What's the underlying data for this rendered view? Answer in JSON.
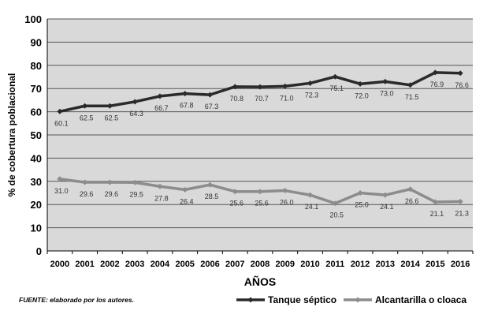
{
  "chart_data": {
    "type": "line",
    "xlabel": "AÑOS",
    "ylabel": "% de cobertura poblacional",
    "ylim": [
      0,
      100
    ],
    "yticks": [
      0,
      10,
      20,
      30,
      40,
      50,
      60,
      70,
      80,
      90,
      100
    ],
    "grid": true,
    "legend_position": "bottom-right",
    "categories": [
      "2000",
      "2001",
      "2002",
      "2003",
      "2004",
      "2005",
      "2006",
      "2007",
      "2008",
      "2009",
      "2010",
      "2011",
      "2012",
      "2013",
      "2014",
      "2015",
      "2016"
    ],
    "series": [
      {
        "name": "Tanque séptico",
        "color": "#2a2a2a",
        "marker": "diamond",
        "values": [
          60.1,
          62.5,
          62.5,
          64.3,
          66.7,
          67.8,
          67.3,
          70.8,
          70.7,
          71.0,
          72.3,
          75.1,
          72.0,
          73.0,
          71.5,
          76.9,
          76.6
        ],
        "labels": [
          "60.1",
          "62.5",
          "62.5",
          "64.3",
          "66.7",
          "67.8",
          "67.3",
          "70.8",
          "70.7",
          "71.0",
          "72.3",
          "75.1",
          "72.0",
          "73.0",
          "71.5",
          "76.9",
          "76.6"
        ]
      },
      {
        "name": "Alcantarilla o cloaca",
        "color": "#8c8c8c",
        "marker": "diamond",
        "values": [
          31.0,
          29.6,
          29.6,
          29.5,
          27.8,
          26.4,
          28.5,
          25.6,
          25.6,
          26.0,
          24.1,
          20.5,
          25.0,
          24.1,
          26.6,
          21.1,
          21.3
        ],
        "labels": [
          "31.0",
          "29.6",
          "29.6",
          "29.5",
          "27.8",
          "26.4",
          "28.5",
          "25.6",
          "25.6",
          "26.0",
          "24.1",
          "20.5",
          "25.0",
          "24.1",
          "26.6",
          "21.1",
          "21.3"
        ]
      }
    ],
    "plot_background": "#d9d9d9",
    "gridline_color": "#555555"
  },
  "source_note": "FUENTE: elaborado por los autores."
}
